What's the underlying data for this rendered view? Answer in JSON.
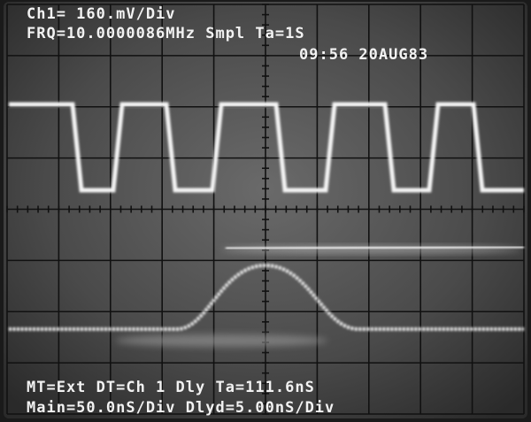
{
  "readout": {
    "channel_scale": "Ch1= 160.mV/Div",
    "frequency": "FRQ=10.0000086MHz Smpl Ta=1S",
    "timestamp": "09:56 20AUG83",
    "trigger": "MT=Ext  DT=Ch 1 Dly Ta=111.6nS",
    "timebase": "Main=50.0nS/Div Dlyd=5.00nS/Div"
  }
}
